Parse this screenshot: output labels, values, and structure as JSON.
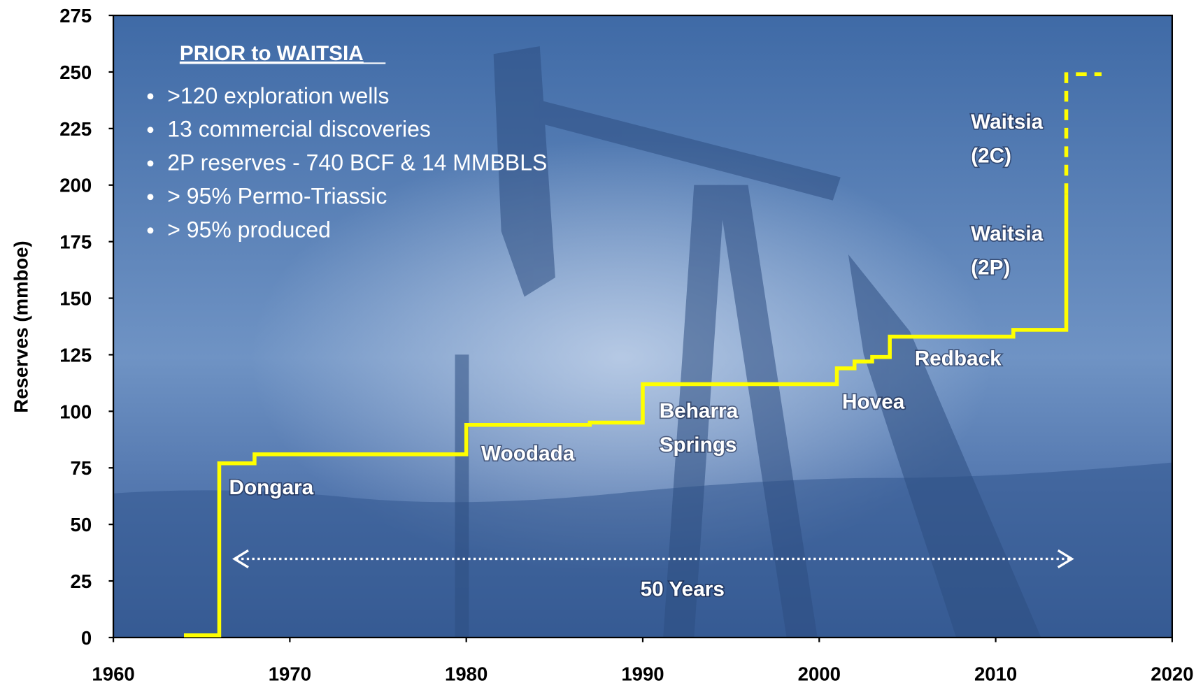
{
  "chart_data": {
    "type": "line",
    "ylabel": "Reserves (mmboe)",
    "xlim": [
      1960,
      2020
    ],
    "xticks": [
      1960,
      1970,
      1980,
      1990,
      2000,
      2010,
      2020
    ],
    "ylim": [
      0,
      275
    ],
    "yticks": [
      0,
      25,
      50,
      75,
      100,
      125,
      150,
      175,
      200,
      225,
      250,
      275
    ],
    "series": [
      {
        "color": "#ffff00",
        "dash": false,
        "x": [
          1964,
          1966,
          1966,
          1968,
          1968,
          1980,
          1980,
          1987,
          1987,
          1990,
          1990,
          2001,
          2001,
          2002,
          2002,
          2003,
          2003,
          2004,
          2004,
          2011,
          2011,
          2014,
          2014
        ],
        "values": [
          1,
          1,
          77,
          77,
          81,
          81,
          94,
          94,
          95,
          95,
          112,
          112,
          119,
          119,
          122,
          122,
          124,
          124,
          133,
          133,
          136,
          136,
          196
        ]
      },
      {
        "color": "#ffff00",
        "dash": true,
        "x": [
          2014,
          2014,
          2016
        ],
        "values": [
          196,
          249,
          249
        ]
      }
    ],
    "box": {
      "heading": "PRIOR to WAITSIA",
      "bullets": [
        ">120 exploration wells",
        "13 commercial discoveries",
        "2P reserves - 740 BCF & 14 MMBBLS",
        "> 95% Permo-Triassic",
        "> 95% produced"
      ]
    },
    "annotations": [
      {
        "lines": [
          "Dongara"
        ]
      },
      {
        "lines": [
          "Woodada"
        ]
      },
      {
        "lines": [
          "Beharra",
          "Springs"
        ]
      },
      {
        "lines": [
          "Hovea"
        ]
      },
      {
        "lines": [
          "Redback"
        ]
      },
      {
        "lines": [
          "Waitsia",
          "(2C)"
        ]
      },
      {
        "lines": [
          "Waitsia",
          "(2P)"
        ]
      },
      {
        "lines": [
          "50 Years"
        ]
      }
    ]
  }
}
